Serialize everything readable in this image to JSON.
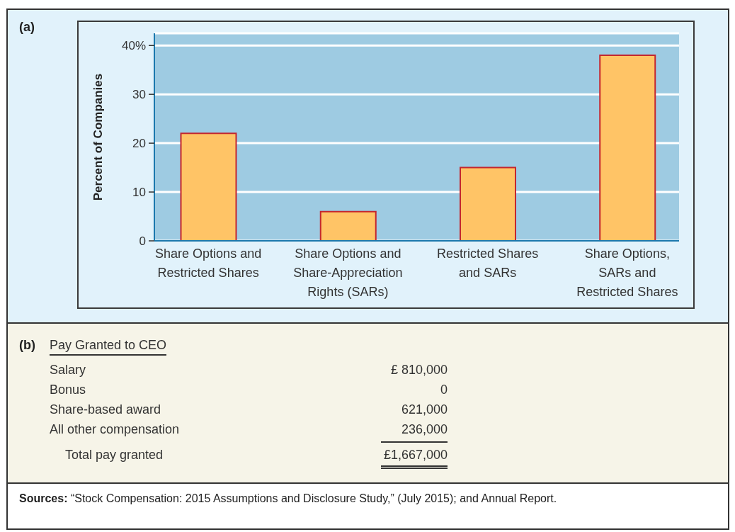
{
  "chart_data": [
    {
      "type": "bar",
      "categories": [
        "Share Options and\nRestricted Shares",
        "Share Options and\nShare-Appreciation\nRights (SARs)",
        "Restricted Shares\nand SARs",
        "Share Options,\nSARs and\nRestricted Shares"
      ],
      "values": [
        22,
        6,
        15,
        38
      ],
      "color": "#ffc466",
      "ylabel": "Percent of Companies",
      "ylim": [
        0,
        42.5
      ],
      "yticks": [
        0,
        10,
        20,
        30,
        {
          "value": 40,
          "label": "40%"
        }
      ],
      "grid": "y",
      "annotations": [
        "(a)"
      ]
    },
    {
      "type": "other",
      "title": "Pay Granted to CEO",
      "categories": [
        "Salary",
        "Bonus",
        "Share-based award",
        "All other compensation",
        "Total pay granted"
      ],
      "value_labels": [
        "£ 810,000",
        "0",
        "621,000",
        "236,000",
        "£1,667,000"
      ],
      "annotations": [
        "(b)",
        "Sources: “Stock Compensation: 2015 Assumptions and Disclosure Study,” (July 2015); and Annual Report."
      ]
    }
  ]
}
